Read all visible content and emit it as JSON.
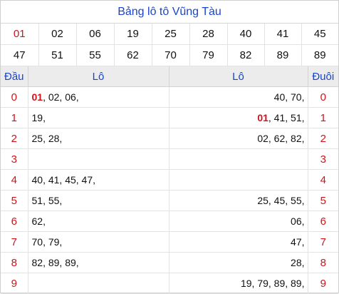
{
  "title": "Bảng lô tô Vũng Tàu",
  "numbers_row1": [
    "01",
    "02",
    "06",
    "19",
    "25",
    "28",
    "40",
    "41",
    "45"
  ],
  "numbers_row2": [
    "47",
    "51",
    "55",
    "62",
    "70",
    "79",
    "82",
    "89",
    "89"
  ],
  "highlight_number": "01",
  "headers": {
    "dau": "Đầu",
    "lo_left": "Lô",
    "lo_right": "Lô",
    "duoi": "Đuôi"
  },
  "rows": [
    {
      "dau": "0",
      "left_red": "01",
      "left": ", 02, 06,",
      "right_red": "",
      "right": "40, 70,",
      "duoi": "0"
    },
    {
      "dau": "1",
      "left_red": "",
      "left": "19,",
      "right_red": "01",
      "right": ", 41, 51,",
      "duoi": "1"
    },
    {
      "dau": "2",
      "left_red": "",
      "left": "25, 28,",
      "right_red": "",
      "right": "02, 62, 82,",
      "duoi": "2"
    },
    {
      "dau": "3",
      "left_red": "",
      "left": "",
      "right_red": "",
      "right": "",
      "duoi": "3"
    },
    {
      "dau": "4",
      "left_red": "",
      "left": "40, 41, 45, 47,",
      "right_red": "",
      "right": "",
      "duoi": "4"
    },
    {
      "dau": "5",
      "left_red": "",
      "left": "51, 55,",
      "right_red": "",
      "right": "25, 45, 55,",
      "duoi": "5"
    },
    {
      "dau": "6",
      "left_red": "",
      "left": "62,",
      "right_red": "",
      "right": "06,",
      "duoi": "6"
    },
    {
      "dau": "7",
      "left_red": "",
      "left": "70, 79,",
      "right_red": "",
      "right": "47,",
      "duoi": "7"
    },
    {
      "dau": "8",
      "left_red": "",
      "left": "82, 89, 89,",
      "right_red": "",
      "right": "28,",
      "duoi": "8"
    },
    {
      "dau": "9",
      "left_red": "",
      "left": "",
      "right_red": "",
      "right": "19, 79, 89, 89,",
      "duoi": "9"
    }
  ]
}
